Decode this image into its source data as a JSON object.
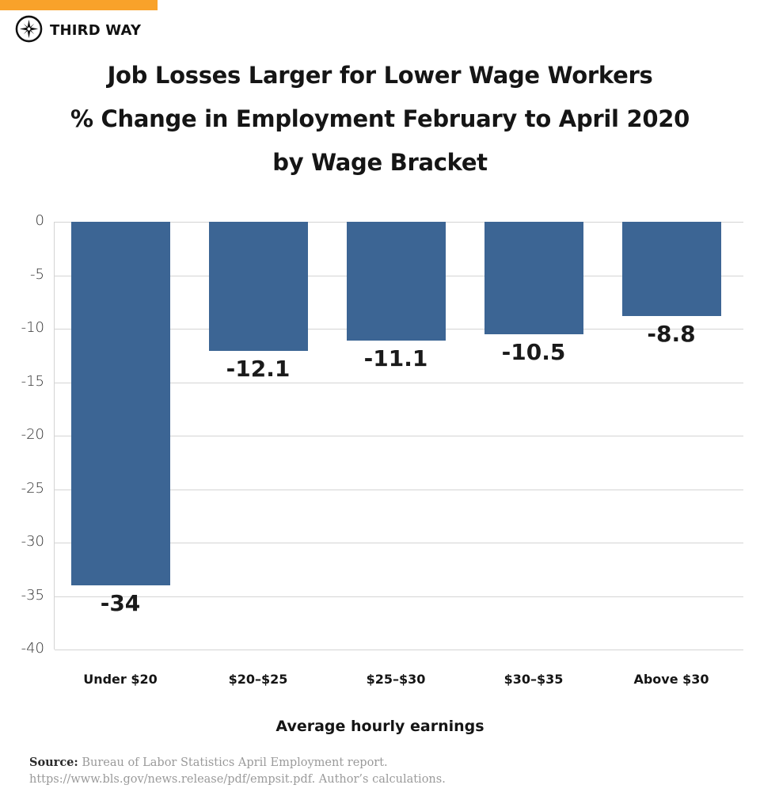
{
  "brand": {
    "name": "THIRD WAY",
    "accent_color": "#f9a22a",
    "logo_icon": "compass-star-icon"
  },
  "title": {
    "line1": "Job Losses Larger for Lower Wage Workers",
    "line2": "% Change in Employment February to April 2020",
    "line3": "by Wage Bracket"
  },
  "axis": {
    "y_ticks": [
      "0",
      "-5",
      "-10",
      "-15",
      "-20",
      "-25",
      "-30",
      "-35",
      "-40"
    ],
    "x_title": "Average hourly earnings"
  },
  "source": {
    "label": "Source:",
    "line1": "Bureau of Labor Statistics April Employment report.",
    "line2": "https://www.bls.gov/news.release/pdf/empsit.pdf. Author’s calculations."
  },
  "chart_data": {
    "type": "bar",
    "title": "Job Losses Larger for Lower Wage Workers — % Change in Employment February to April 2020 by Wage Bracket",
    "categories": [
      "Under $20",
      "$20–$25",
      "$25–$30",
      "$30–$35",
      "Above $30"
    ],
    "values": [
      -34,
      -12.1,
      -11.1,
      -10.5,
      -8.8
    ],
    "value_labels": [
      "-34",
      "-12.1",
      "-11.1",
      "-10.5",
      "-8.8"
    ],
    "xlabel": "Average hourly earnings",
    "ylabel": "",
    "ylim": [
      -40,
      0
    ],
    "yticks": [
      0,
      -5,
      -10,
      -15,
      -20,
      -25,
      -30,
      -35,
      -40
    ],
    "grid": true,
    "legend": null,
    "bar_color": "#3c6594"
  }
}
